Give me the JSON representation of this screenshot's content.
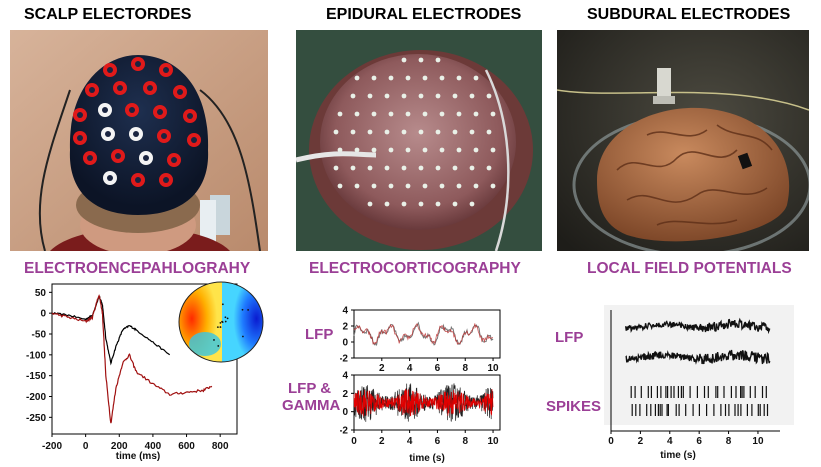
{
  "columns": [
    {
      "title": "SCALP ELECTORDES",
      "subtitle": "ELECTROENCEPAHLOGRAHY"
    },
    {
      "title": "EPIDURAL ELECTRODES",
      "subtitle": "ELECTROCORTICOGRAPHY"
    },
    {
      "title": "SUBDURAL ELECTRODES",
      "subtitle": "LOCAL FIELD POTENTIALS"
    }
  ],
  "eeg": {
    "x_ticks": [
      "-200",
      "0",
      "200",
      "400",
      "600",
      "800"
    ],
    "y_ticks": [
      "50",
      "0",
      "-50",
      "-100",
      "-150",
      "-200",
      "-250"
    ],
    "xlabel": "time (ms)"
  },
  "ecog": {
    "lfp_label": "LFP",
    "gamma_label_1": "LFP &",
    "gamma_label_2": "GAMMA",
    "top_y_ticks": [
      "4",
      "2",
      "0",
      "-2"
    ],
    "top_x_ticks": [
      "2",
      "4",
      "6",
      "8",
      "10"
    ],
    "bottom_y_ticks": [
      "4",
      "2",
      "0",
      "-2"
    ],
    "bottom_x_ticks": [
      "0",
      "2",
      "4",
      "6",
      "8",
      "10"
    ],
    "xlabel": "time (s)"
  },
  "lfp": {
    "lfp_label": "LFP",
    "spikes_label": "SPIKES",
    "x_ticks": [
      "0",
      "2",
      "4",
      "6",
      "8",
      "10"
    ],
    "xlabel": "time (s)"
  },
  "colors": {
    "title": "#000000",
    "subtitle": "#9b3f96",
    "eeg_trace_1": "#000000",
    "eeg_trace_2": "#a01010",
    "gamma_trace": "#e00000"
  },
  "chart_data": [
    {
      "type": "line",
      "xlabel": "time (ms)",
      "xlim": [
        -200,
        900
      ],
      "ylim": [
        -290,
        70
      ],
      "series": [
        {
          "x": [
            -200,
            -100,
            0,
            40,
            80,
            100,
            120,
            150,
            180,
            220,
            260,
            300,
            400,
            500
          ],
          "y": [
            0,
            -5,
            -15,
            -5,
            40,
            20,
            -60,
            -120,
            -80,
            -40,
            -30,
            -40,
            -70,
            -100
          ]
        },
        {
          "x": [
            -200,
            -100,
            0,
            40,
            80,
            100,
            120,
            150,
            180,
            220,
            260,
            300,
            400,
            500,
            600,
            700,
            750
          ],
          "y": [
            0,
            -10,
            -20,
            -10,
            45,
            0,
            -150,
            -265,
            -180,
            -120,
            -100,
            -140,
            -170,
            -195,
            -190,
            -185,
            -175
          ]
        }
      ]
    },
    {
      "type": "line",
      "xlabel": "time (s)",
      "xlim": [
        0,
        10.5
      ],
      "ylim": [
        -2,
        4
      ]
    },
    {
      "type": "line",
      "xlabel": "time (s)",
      "xlim": [
        0,
        11.5
      ]
    }
  ]
}
